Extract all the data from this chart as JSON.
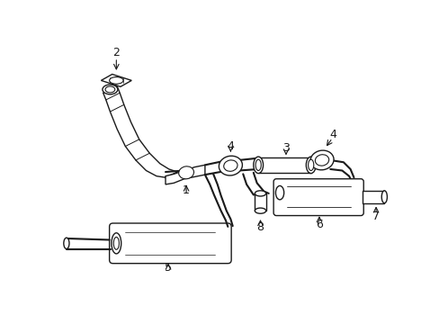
{
  "background_color": "#ffffff",
  "line_color": "#1a1a1a",
  "lw": 1.0,
  "figsize": [
    4.89,
    3.6
  ],
  "dpi": 100
}
